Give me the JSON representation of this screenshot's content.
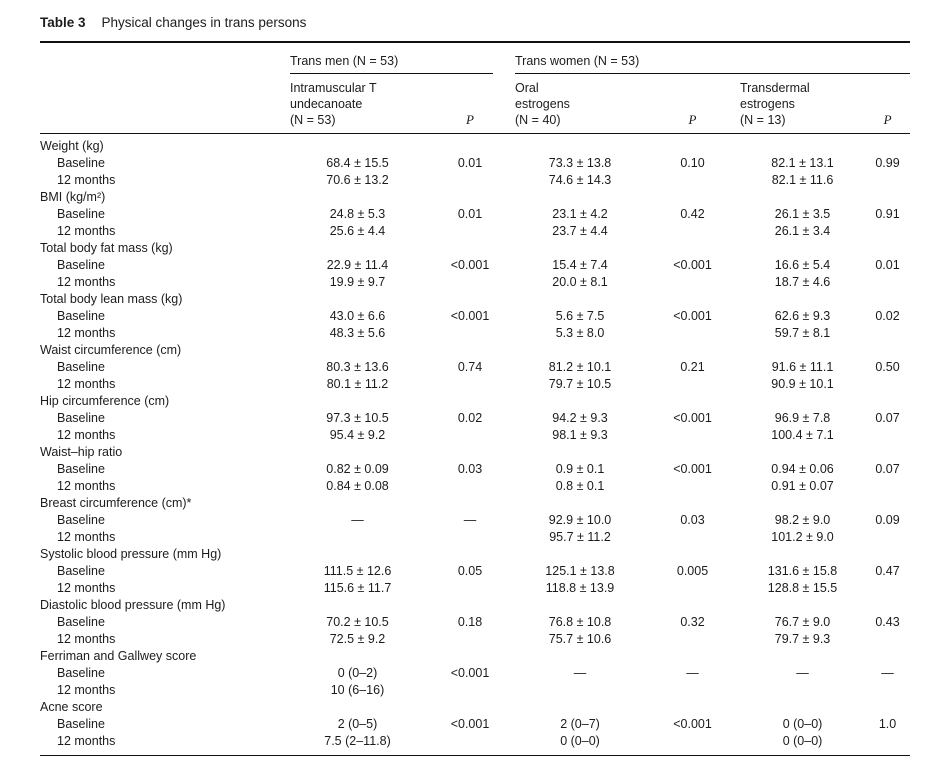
{
  "caption": {
    "label": "Table 3",
    "text": "Physical changes in trans persons"
  },
  "groups": [
    {
      "label": "Trans men (N = 53)"
    },
    {
      "label": "Trans women (N = 53)"
    }
  ],
  "columns": [
    {
      "lines": [
        "Intramuscular T",
        "undecanoate",
        "(N = 53)"
      ]
    },
    {
      "lines": [
        "P"
      ]
    },
    {
      "lines": [
        "Oral",
        "estrogens",
        "(N = 40)"
      ]
    },
    {
      "lines": [
        "P"
      ]
    },
    {
      "lines": [
        "Transdermal",
        "estrogens",
        "(N = 13)"
      ]
    },
    {
      "lines": [
        "P"
      ]
    }
  ],
  "sections": [
    {
      "name": "Weight (kg)",
      "rows": [
        {
          "label": "Baseline",
          "cells": [
            "68.4 ± 15.5",
            "0.01",
            "73.3 ± 13.8",
            "0.10",
            "82.1 ± 13.1",
            "0.99"
          ]
        },
        {
          "label": "12 months",
          "cells": [
            "70.6 ± 13.2",
            "",
            "74.6 ± 14.3",
            "",
            "82.1 ± 11.6",
            ""
          ]
        }
      ]
    },
    {
      "name": "BMI (kg/m²)",
      "rows": [
        {
          "label": "Baseline",
          "cells": [
            "24.8 ± 5.3",
            "0.01",
            "23.1 ± 4.2",
            "0.42",
            "26.1 ± 3.5",
            "0.91"
          ]
        },
        {
          "label": "12 months",
          "cells": [
            "25.6 ± 4.4",
            "",
            "23.7 ± 4.4",
            "",
            "26.1 ± 3.4",
            ""
          ]
        }
      ]
    },
    {
      "name": "Total body fat mass (kg)",
      "rows": [
        {
          "label": "Baseline",
          "cells": [
            "22.9 ± 11.4",
            "<0.001",
            "15.4 ± 7.4",
            "<0.001",
            "16.6 ± 5.4",
            "0.01"
          ]
        },
        {
          "label": "12 months",
          "cells": [
            "19.9 ± 9.7",
            "",
            "20.0 ± 8.1",
            "",
            "18.7 ± 4.6",
            ""
          ]
        }
      ]
    },
    {
      "name": "Total body lean mass (kg)",
      "rows": [
        {
          "label": "Baseline",
          "cells": [
            "43.0 ± 6.6",
            "<0.001",
            "5.6 ± 7.5",
            "<0.001",
            "62.6 ± 9.3",
            "0.02"
          ]
        },
        {
          "label": "12 months",
          "cells": [
            "48.3 ± 5.6",
            "",
            "5.3 ± 8.0",
            "",
            "59.7 ± 8.1",
            ""
          ]
        }
      ]
    },
    {
      "name": "Waist circumference (cm)",
      "rows": [
        {
          "label": "Baseline",
          "cells": [
            "80.3 ± 13.6",
            "0.74",
            "81.2 ± 10.1",
            "0.21",
            "91.6 ± 11.1",
            "0.50"
          ]
        },
        {
          "label": "12 months",
          "cells": [
            "80.1 ± 11.2",
            "",
            "79.7 ± 10.5",
            "",
            "90.9 ± 10.1",
            ""
          ]
        }
      ]
    },
    {
      "name": "Hip circumference (cm)",
      "rows": [
        {
          "label": "Baseline",
          "cells": [
            "97.3 ± 10.5",
            "0.02",
            "94.2 ± 9.3",
            "<0.001",
            "96.9 ± 7.8",
            "0.07"
          ]
        },
        {
          "label": "12 months",
          "cells": [
            "95.4 ± 9.2",
            "",
            "98.1 ± 9.3",
            "",
            "100.4 ± 7.1",
            ""
          ]
        }
      ]
    },
    {
      "name": "Waist–hip ratio",
      "rows": [
        {
          "label": "Baseline",
          "cells": [
            "0.82 ± 0.09",
            "0.03",
            "0.9 ± 0.1",
            "<0.001",
            "0.94 ± 0.06",
            "0.07"
          ]
        },
        {
          "label": "12 months",
          "cells": [
            "0.84 ± 0.08",
            "",
            "0.8 ± 0.1",
            "",
            "0.91 ± 0.07",
            ""
          ]
        }
      ]
    },
    {
      "name": "Breast circumference (cm)*",
      "rows": [
        {
          "label": "Baseline",
          "cells": [
            "—",
            "—",
            "92.9 ± 10.0",
            "0.03",
            "98.2 ± 9.0",
            "0.09"
          ]
        },
        {
          "label": "12 months",
          "cells": [
            "",
            "",
            "95.7 ± 11.2",
            "",
            "101.2 ± 9.0",
            ""
          ]
        }
      ]
    },
    {
      "name": "Systolic blood pressure (mm Hg)",
      "rows": [
        {
          "label": "Baseline",
          "cells": [
            "111.5 ± 12.6",
            "0.05",
            "125.1 ± 13.8",
            "0.005",
            "131.6 ± 15.8",
            "0.47"
          ]
        },
        {
          "label": "12 months",
          "cells": [
            "115.6 ± 11.7",
            "",
            "118.8 ± 13.9",
            "",
            "128.8 ± 15.5",
            ""
          ]
        }
      ]
    },
    {
      "name": "Diastolic blood pressure (mm Hg)",
      "rows": [
        {
          "label": "Baseline",
          "cells": [
            "70.2 ± 10.5",
            "0.18",
            "76.8 ± 10.8",
            "0.32",
            "76.7 ± 9.0",
            "0.43"
          ]
        },
        {
          "label": "12 months",
          "cells": [
            "72.5 ± 9.2",
            "",
            "75.7 ± 10.6",
            "",
            "79.7 ± 9.3",
            ""
          ]
        }
      ]
    },
    {
      "name": "Ferriman and Gallwey score",
      "rows": [
        {
          "label": "Baseline",
          "cells": [
            "0 (0–2)",
            "<0.001",
            "—",
            "—",
            "—",
            "—"
          ]
        },
        {
          "label": "12 months",
          "cells": [
            "10 (6–16)",
            "",
            "",
            "",
            "",
            ""
          ]
        }
      ]
    },
    {
      "name": "Acne score",
      "rows": [
        {
          "label": "Baseline",
          "cells": [
            "2 (0–5)",
            "<0.001",
            "2 (0–7)",
            "<0.001",
            "0 (0–0)",
            "1.0"
          ]
        },
        {
          "label": "12 months",
          "cells": [
            "7.5 (2–11.8)",
            "",
            "0 (0–0)",
            "",
            "0 (0–0)",
            ""
          ]
        }
      ]
    }
  ]
}
